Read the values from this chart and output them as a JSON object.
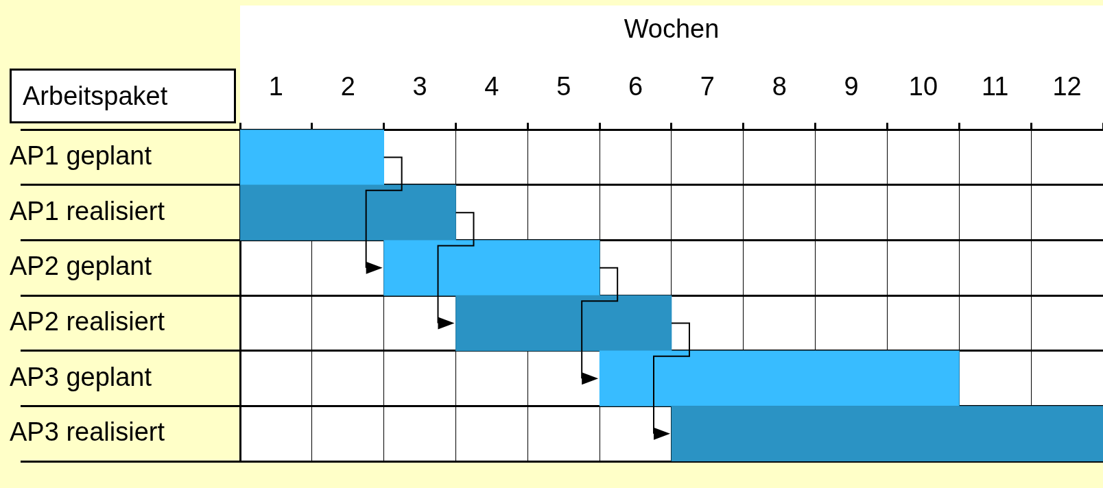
{
  "chart_data": {
    "type": "bar",
    "orientation": "horizontal",
    "xlabel": "Wochen",
    "ylabel": "Arbeitspaket",
    "categories": [
      "AP1 geplant",
      "AP1 realisiert",
      "AP2 geplant",
      "AP2 realisiert",
      "AP3 geplant",
      "AP3 realisiert"
    ],
    "base": [
      0,
      0,
      2,
      3,
      5,
      6
    ],
    "values": [
      2,
      3,
      3,
      3,
      5,
      6
    ],
    "colors": [
      "#38bcff",
      "#2b93c4",
      "#38bcff",
      "#2b93c4",
      "#38bcff",
      "#2b93c4"
    ],
    "xlim": [
      0,
      12
    ],
    "xticks": [
      {
        "value": 0.5,
        "label": "1"
      },
      {
        "value": 1.5,
        "label": "2"
      },
      {
        "value": 2.5,
        "label": "3"
      },
      {
        "value": 3.5,
        "label": "4"
      },
      {
        "value": 4.5,
        "label": "5"
      },
      {
        "value": 5.5,
        "label": "6"
      },
      {
        "value": 6.5,
        "label": "7"
      },
      {
        "value": 7.5,
        "label": "8"
      },
      {
        "value": 8.5,
        "label": "9"
      },
      {
        "value": 9.5,
        "label": "10"
      },
      {
        "value": 10.5,
        "label": "11"
      },
      {
        "value": 11.5,
        "label": "12"
      }
    ],
    "grid": "x"
  }
}
